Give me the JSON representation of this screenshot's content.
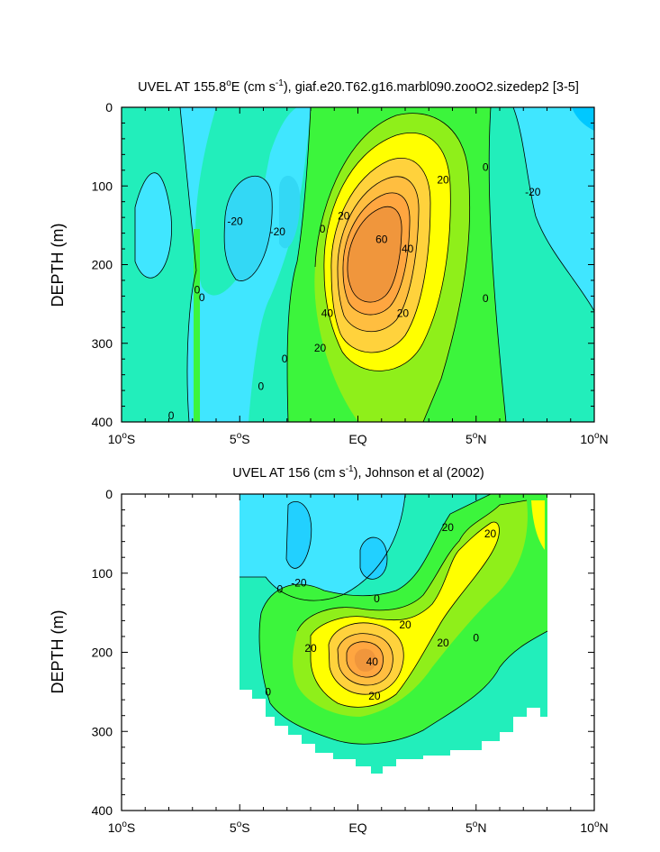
{
  "chart_data": [
    {
      "type": "contour",
      "title_prefix": "UVEL AT 155.8",
      "title_deg": "o",
      "title_mid": "E (cm s",
      "title_exp": "-1",
      "title_suffix": "), giaf.e20.T62.g16.marbl090.zooO2.sizedep2 [3-5]",
      "xlabel": "",
      "ylabel": "DEPTH (m)",
      "xlim": [
        -10,
        10
      ],
      "ylim": [
        0,
        400
      ],
      "x_ticks": [
        {
          "value": -10,
          "num": "10",
          "deg": "o",
          "hemi": "S"
        },
        {
          "value": -5,
          "num": "5",
          "deg": "o",
          "hemi": "S"
        },
        {
          "value": 0,
          "num": "EQ",
          "deg": "",
          "hemi": ""
        },
        {
          "value": 5,
          "num": "5",
          "deg": "o",
          "hemi": "N"
        },
        {
          "value": 10,
          "num": "10",
          "deg": "o",
          "hemi": "N"
        }
      ],
      "y_ticks": [
        0,
        100,
        200,
        300,
        400
      ],
      "contour_interval": 10,
      "levels_color": [
        {
          "min": -30,
          "max": -20,
          "color": "#00d2ff"
        },
        {
          "min": -20,
          "max": -10,
          "color": "#40e6ff"
        },
        {
          "min": -10,
          "max": 0,
          "color": "#22eebb"
        },
        {
          "min": 0,
          "max": 10,
          "color": "#3cf53c"
        },
        {
          "min": 10,
          "max": 20,
          "color": "#8fef1a"
        },
        {
          "min": 20,
          "max": 30,
          "color": "#ffff00"
        },
        {
          "min": 30,
          "max": 40,
          "color": "#ffd23c"
        },
        {
          "min": 40,
          "max": 50,
          "color": "#ffbe40"
        },
        {
          "min": 50,
          "max": 60,
          "color": "#ffa640"
        },
        {
          "min": 60,
          "max": 80,
          "color": "#f0963c"
        }
      ],
      "contour_labels": [
        {
          "text": "0",
          "lon": -4.1,
          "depth": 355
        },
        {
          "text": "0",
          "lon": -3.1,
          "depth": 320
        },
        {
          "text": "-20",
          "lon": -5.2,
          "depth": 145
        },
        {
          "text": "-20",
          "lon": -3.4,
          "depth": 158
        },
        {
          "text": "0",
          "lon": -6.8,
          "depth": 232
        },
        {
          "text": "0",
          "lon": -6.6,
          "depth": 242
        },
        {
          "text": "0",
          "lon": -7.9,
          "depth": 392
        },
        {
          "text": "0",
          "lon": -1.5,
          "depth": 155
        },
        {
          "text": "20",
          "lon": -0.6,
          "depth": 138
        },
        {
          "text": "60",
          "lon": 1.0,
          "depth": 168
        },
        {
          "text": "40",
          "lon": 2.1,
          "depth": 180
        },
        {
          "text": "20",
          "lon": 3.6,
          "depth": 92
        },
        {
          "text": "40",
          "lon": -1.3,
          "depth": 262
        },
        {
          "text": "20",
          "lon": 1.9,
          "depth": 262
        },
        {
          "text": "20",
          "lon": -1.6,
          "depth": 306
        },
        {
          "text": "0",
          "lon": 5.4,
          "depth": 76
        },
        {
          "text": "0",
          "lon": 5.4,
          "depth": 243
        },
        {
          "text": "-20",
          "lon": 7.4,
          "depth": 108
        }
      ]
    },
    {
      "type": "contour",
      "title_prefix": "UVEL AT 156 (cm s",
      "title_deg": "",
      "title_mid": "",
      "title_exp": "-1",
      "title_suffix": "), Johnson et al (2002)",
      "xlabel": "",
      "ylabel": "DEPTH (m)",
      "xlim": [
        -10,
        10
      ],
      "ylim": [
        0,
        400
      ],
      "x_ticks": [
        {
          "value": -10,
          "num": "10",
          "deg": "o",
          "hemi": "S"
        },
        {
          "value": -5,
          "num": "5",
          "deg": "o",
          "hemi": "S"
        },
        {
          "value": 0,
          "num": "EQ",
          "deg": "",
          "hemi": ""
        },
        {
          "value": 5,
          "num": "5",
          "deg": "o",
          "hemi": "N"
        },
        {
          "value": 10,
          "num": "10",
          "deg": "o",
          "hemi": "N"
        }
      ],
      "y_ticks": [
        0,
        100,
        200,
        300,
        400
      ],
      "data_extent_lon": [
        -5,
        8
      ],
      "contour_labels": [
        {
          "text": "-20",
          "lon": -2.5,
          "depth": 112
        },
        {
          "text": "0",
          "lon": -3.3,
          "depth": 120
        },
        {
          "text": "0",
          "lon": 0.8,
          "depth": 132
        },
        {
          "text": "20",
          "lon": 2.0,
          "depth": 165
        },
        {
          "text": "20",
          "lon": 3.8,
          "depth": 42
        },
        {
          "text": "20",
          "lon": 5.6,
          "depth": 50
        },
        {
          "text": "20",
          "lon": -2.0,
          "depth": 195
        },
        {
          "text": "40",
          "lon": 0.6,
          "depth": 212
        },
        {
          "text": "20",
          "lon": 3.6,
          "depth": 188
        },
        {
          "text": "0",
          "lon": 5.0,
          "depth": 182
        },
        {
          "text": "20",
          "lon": 0.7,
          "depth": 255
        },
        {
          "text": "0",
          "lon": -3.8,
          "depth": 250
        }
      ]
    }
  ]
}
